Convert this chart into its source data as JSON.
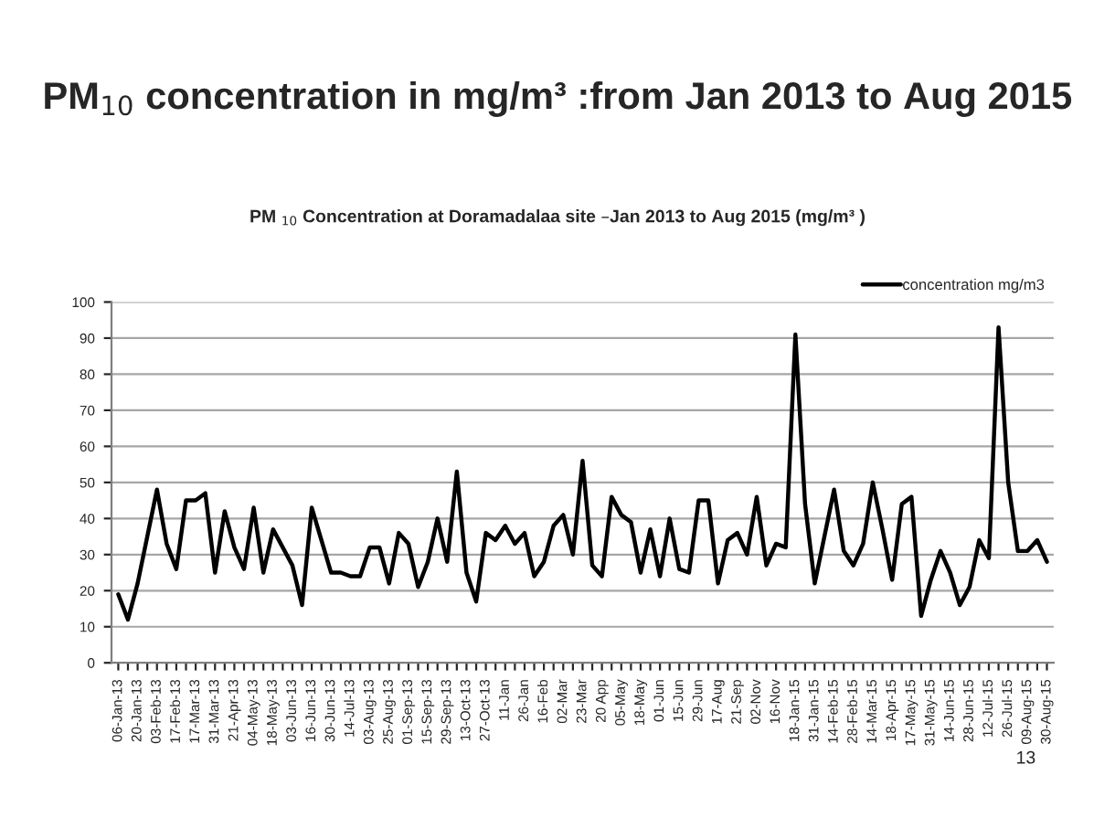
{
  "chart_data": {
    "type": "line",
    "title": "PM$_{10}$ concentration in mg/m³ :from Jan 2013 to Aug 2015",
    "subtitle": "PM $_{10}$ Concentration at Doramadalaa site –Jan 2013 to Aug 2015 (mg/m³ )",
    "categories": [
      "06-Jan-13",
      null,
      "20-Jan-13",
      null,
      "03-Feb-13",
      null,
      "17-Feb-13",
      null,
      "17-Mar-13",
      null,
      "31-Mar-13",
      null,
      "21-Apr-13",
      null,
      "04-May-13",
      null,
      "18-May-13",
      null,
      "03-Jun-13",
      null,
      "16-Jun-13",
      null,
      "30-Jun-13",
      null,
      "14-Jul-13",
      null,
      "03-Aug-13",
      null,
      "25-Aug-13",
      null,
      "01-Sep-13",
      null,
      "15-Sep-13",
      null,
      "29-Sep-13",
      null,
      "13-Oct-13",
      null,
      "27-Oct-13",
      null,
      "11-Jan",
      null,
      "26-Jan",
      null,
      "16-Feb",
      null,
      "02-Mar",
      null,
      "23-Mar",
      null,
      "20 App",
      null,
      "05-May",
      null,
      "18-May",
      null,
      "01-Jun",
      null,
      "15-Jun",
      null,
      "29-Jun",
      null,
      "17-Aug",
      null,
      "21-Sep",
      null,
      "02-Nov",
      null,
      "16-Nov",
      null,
      "18-Jan-15",
      null,
      "31-Jan-15",
      null,
      "14-Feb-15",
      null,
      "28-Feb-15",
      null,
      "14-Mar-15",
      null,
      "18-Apr-15",
      null,
      "17-May-15",
      null,
      "31-May-15",
      null,
      "14-Jun-15",
      null,
      "28-Jun-15",
      null,
      "12-Jul-15",
      null,
      "26-Jul-15",
      null,
      "09-Aug-15",
      null,
      "30-Aug-15"
    ],
    "series": [
      {
        "name": "concentration mg/m3",
        "color": "#000000",
        "values": [
          19,
          12,
          22,
          35,
          48,
          33,
          26,
          45,
          45,
          47,
          25,
          42,
          32,
          26,
          43,
          25,
          37,
          32,
          27,
          16,
          43,
          34,
          25,
          25,
          24,
          24,
          32,
          32,
          22,
          36,
          33,
          21,
          28,
          40,
          28,
          53,
          25,
          17,
          36,
          34,
          38,
          33,
          36,
          24,
          28,
          38,
          41,
          30,
          56,
          27,
          24,
          46,
          41,
          39,
          25,
          37,
          24,
          40,
          26,
          25,
          45,
          45,
          22,
          34,
          36,
          30,
          46,
          27,
          33,
          32,
          91,
          44,
          22,
          35,
          48,
          31,
          27,
          33,
          50,
          37,
          23,
          44,
          46,
          13,
          23,
          31,
          25,
          16,
          21,
          34,
          29,
          93,
          50,
          31,
          31,
          34,
          28
        ]
      }
    ],
    "ylim": [
      0,
      100
    ],
    "yticks": [
      0,
      10,
      20,
      30,
      40,
      50,
      60,
      70,
      80,
      90,
      100
    ],
    "grid": "y",
    "legend": "top right",
    "marker": "none",
    "line_style": "solid",
    "annotations": [
      "13"
    ]
  }
}
